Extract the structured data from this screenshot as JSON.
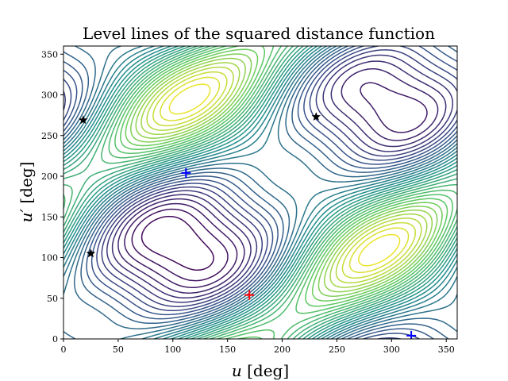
{
  "chart_data": {
    "type": "contour",
    "title": "Level lines of the squared distance function",
    "xlabel": {
      "symbol": "u",
      "unit": "[deg]"
    },
    "ylabel": {
      "symbol": "u′",
      "unit": "[deg]"
    },
    "xlim": [
      0,
      360
    ],
    "ylim": [
      0,
      360
    ],
    "xticks": [
      0,
      50,
      100,
      150,
      200,
      250,
      300,
      350
    ],
    "yticks": [
      0,
      50,
      100,
      150,
      200,
      250,
      300,
      350
    ],
    "grid": false,
    "colormap": [
      "#440154",
      "#3b528b",
      "#21918c",
      "#5ec962",
      "#fde725"
    ],
    "markers": [
      {
        "type": "plus",
        "color": "#ff0000",
        "x": 170,
        "y": 54
      },
      {
        "type": "plus",
        "color": "#0000ff",
        "x": 112,
        "y": 204
      },
      {
        "type": "plus",
        "color": "#0000ff",
        "x": 318,
        "y": 4
      },
      {
        "type": "star",
        "color": "#000000",
        "x": 18,
        "y": 269
      },
      {
        "type": "star",
        "color": "#000000",
        "x": 231,
        "y": 273
      },
      {
        "type": "star",
        "color": "#000000",
        "x": 25,
        "y": 105
      }
    ]
  }
}
